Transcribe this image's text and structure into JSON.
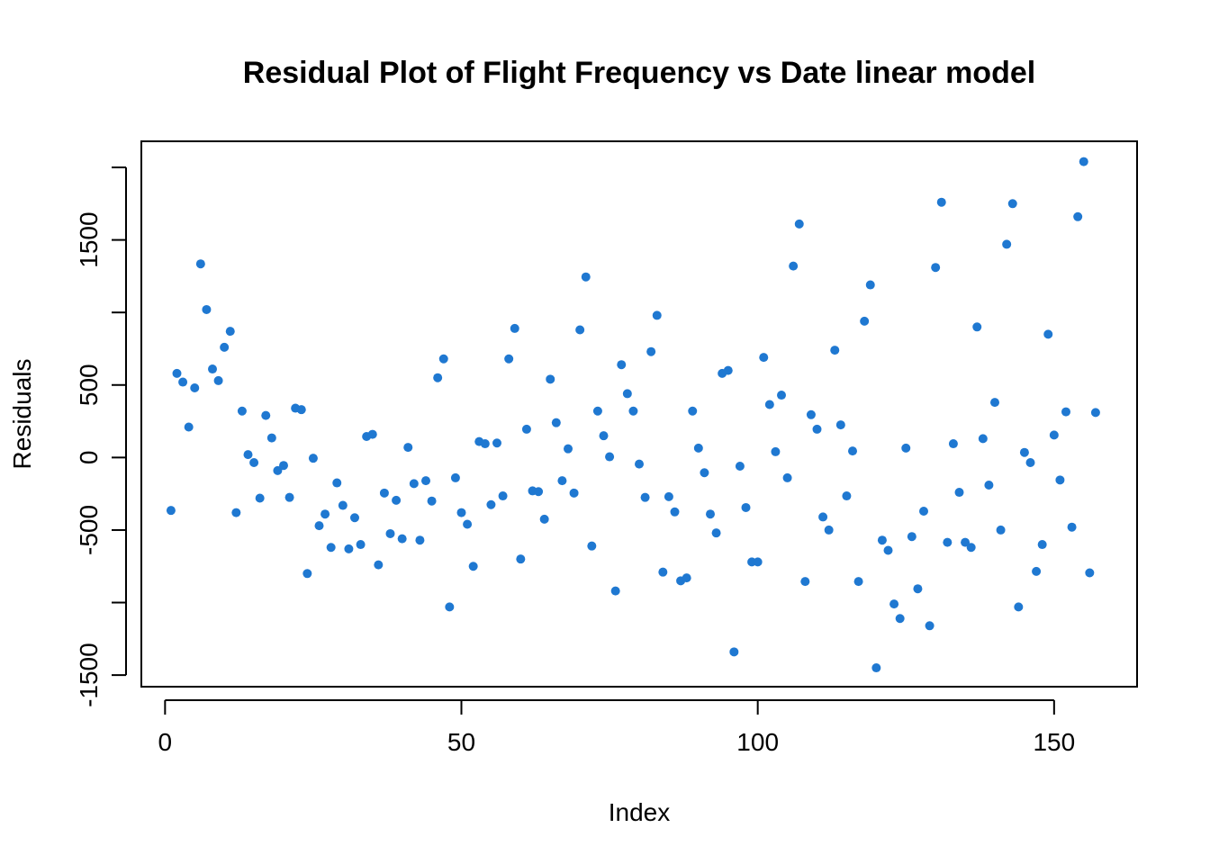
{
  "chart_data": {
    "type": "scatter",
    "title": "Residual Plot of Flight Frequency vs Date linear model",
    "xlabel": "Index",
    "ylabel": "Residuals",
    "xlim": [
      -4,
      164
    ],
    "ylim": [
      -1580,
      2180
    ],
    "xticks": [
      0,
      50,
      100,
      150
    ],
    "xtick_labels": [
      "0",
      "50",
      "100",
      "150"
    ],
    "yticks": [
      -1500,
      -1000,
      -500,
      0,
      500,
      1000,
      1500,
      2000
    ],
    "ytick_labels": [
      "-1500",
      "",
      "-500",
      "0",
      "500",
      "",
      "1500",
      ""
    ],
    "point_color": "#1f78d1",
    "grid": false,
    "legend": "none",
    "x": [
      1,
      2,
      3,
      4,
      5,
      6,
      7,
      8,
      9,
      10,
      11,
      12,
      13,
      14,
      15,
      16,
      17,
      18,
      19,
      20,
      21,
      22,
      23,
      24,
      25,
      26,
      27,
      28,
      29,
      30,
      31,
      32,
      33,
      34,
      35,
      36,
      37,
      38,
      39,
      40,
      41,
      42,
      43,
      44,
      45,
      46,
      47,
      48,
      49,
      50,
      51,
      52,
      53,
      54,
      55,
      56,
      57,
      58,
      59,
      60,
      61,
      62,
      63,
      64,
      65,
      66,
      67,
      68,
      69,
      70,
      71,
      72,
      73,
      74,
      75,
      76,
      77,
      78,
      79,
      80,
      81,
      82,
      83,
      84,
      85,
      86,
      87,
      88,
      89,
      90,
      91,
      92,
      93,
      94,
      95,
      96,
      97,
      98,
      99,
      100,
      101,
      102,
      103,
      104,
      105,
      106,
      107,
      108,
      109,
      110,
      111,
      112,
      113,
      114,
      115,
      116,
      117,
      118,
      119,
      120,
      121,
      122,
      123,
      124,
      125,
      126,
      127,
      128,
      129,
      130,
      131,
      132,
      133,
      134,
      135,
      136,
      137,
      138,
      139,
      140,
      141,
      142,
      143,
      144,
      145,
      146,
      147,
      148,
      149,
      150,
      151,
      152,
      153,
      154,
      155,
      156,
      157
    ],
    "y": [
      -365,
      580,
      520,
      210,
      480,
      1335,
      1020,
      610,
      530,
      760,
      870,
      -380,
      320,
      20,
      -35,
      -280,
      290,
      135,
      -90,
      -55,
      -275,
      340,
      330,
      -800,
      -5,
      -470,
      -390,
      -620,
      -175,
      -330,
      -630,
      -415,
      -600,
      145,
      160,
      -740,
      -245,
      -525,
      -295,
      -560,
      70,
      -180,
      -570,
      -160,
      -300,
      550,
      680,
      -1030,
      -140,
      -380,
      -460,
      -750,
      110,
      95,
      -325,
      100,
      -265,
      680,
      890,
      -700,
      195,
      -230,
      -235,
      -425,
      540,
      240,
      -160,
      60,
      -245,
      880,
      1245,
      -610,
      320,
      150,
      5,
      -920,
      640,
      440,
      320,
      -45,
      -275,
      730,
      980,
      -790,
      -270,
      -375,
      -850,
      -830,
      320,
      65,
      -105,
      -390,
      -520,
      580,
      600,
      -1340,
      -60,
      -345,
      -720,
      -720,
      690,
      365,
      40,
      430,
      -140,
      1320,
      1610,
      -855,
      295,
      195,
      -410,
      -500,
      740,
      225,
      -265,
      45,
      -855,
      940,
      1190,
      -1450,
      -570,
      -640,
      -1010,
      -1110,
      65,
      -545,
      -905,
      -370,
      -1160,
      1310,
      1760,
      -585,
      95,
      -240,
      -585,
      -620,
      900,
      130,
      -190,
      380,
      -500,
      1470,
      1750,
      -1030,
      35,
      -35,
      -785,
      -600,
      850,
      155,
      -155,
      315,
      -480,
      1660,
      2040,
      -795,
      310
    ]
  }
}
